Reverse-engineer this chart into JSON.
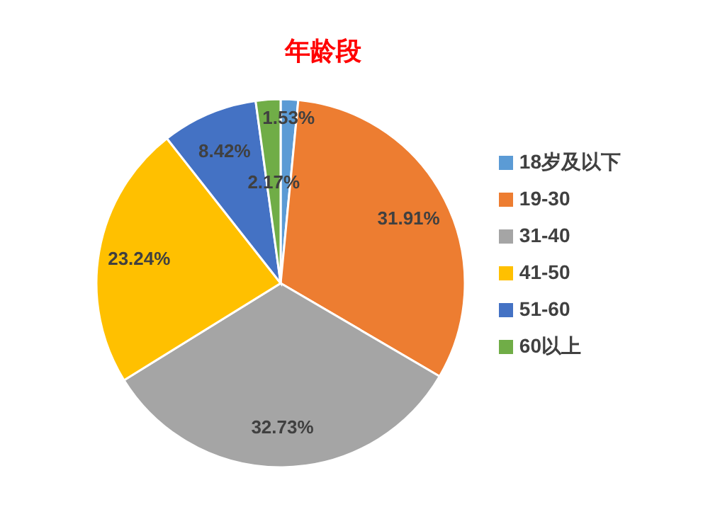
{
  "chart_data": {
    "type": "pie",
    "title": "年龄段",
    "categories": [
      "18岁及以下",
      "19-30",
      "31-40",
      "41-50",
      "51-60",
      "60以上"
    ],
    "values": [
      1.53,
      31.91,
      32.73,
      23.24,
      8.42,
      2.17
    ],
    "value_labels": [
      "1.53%",
      "31.91%",
      "32.73%",
      "23.24%",
      "8.42%",
      "2.17%"
    ],
    "colors": [
      "#5b9bd5",
      "#ed7d31",
      "#a5a5a5",
      "#ffc000",
      "#4472c4",
      "#70ad47"
    ],
    "legend": "right"
  }
}
